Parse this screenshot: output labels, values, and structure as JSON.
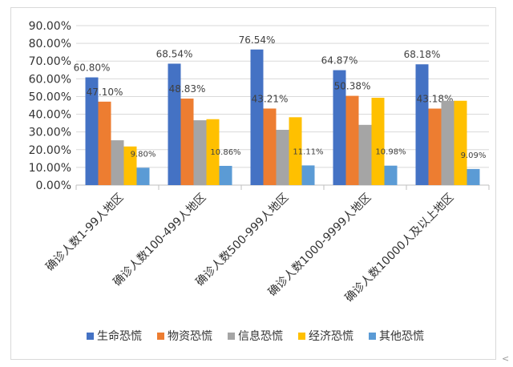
{
  "chart_data": {
    "type": "bar",
    "categories": [
      "确诊人数1-99人地区",
      "确诊人数100-499人地区",
      "确诊人数500-999人地区",
      "确诊人数1000-9999人地区",
      "确诊人数10000人及以上地区"
    ],
    "series": [
      {
        "name": "生命恐慌",
        "color": "#4472c4",
        "values": [
          60.8,
          68.54,
          76.54,
          64.87,
          68.18
        ],
        "labels": [
          "60.80%",
          "68.54%",
          "76.54%",
          "64.87%",
          "68.18%"
        ]
      },
      {
        "name": "物资恐慌",
        "color": "#ed7d31",
        "values": [
          47.1,
          48.83,
          43.21,
          50.38,
          43.18
        ],
        "labels": [
          "47.10%",
          "48.83%",
          "43.21%",
          "50.38%",
          "43.18%"
        ]
      },
      {
        "name": "信息恐慌",
        "color": "#a5a5a5",
        "values": [
          25.3,
          36.6,
          31.2,
          34.0,
          47.6
        ],
        "labels": [
          "",
          "",
          "",
          "",
          ""
        ]
      },
      {
        "name": "经济恐慌",
        "color": "#ffc000",
        "values": [
          21.8,
          37.2,
          38.3,
          49.3,
          47.6
        ],
        "labels": [
          "",
          "",
          "",
          "",
          ""
        ]
      },
      {
        "name": "其他恐慌",
        "color": "#5b9bd5",
        "values": [
          9.8,
          10.86,
          11.11,
          10.98,
          9.09
        ],
        "labels": [
          "9.80%",
          "10.86%",
          "11.11%",
          "10.98%",
          "9.09%"
        ]
      }
    ],
    "yticks": [
      "0.00%",
      "10.00%",
      "20.00%",
      "30.00%",
      "40.00%",
      "50.00%",
      "60.00%",
      "70.00%",
      "80.00%",
      "90.00%"
    ],
    "ylim": [
      0,
      90
    ],
    "grid": true,
    "legend": "bottom",
    "title": "",
    "xlabel": "",
    "ylabel": ""
  },
  "cursor_mark": "<"
}
